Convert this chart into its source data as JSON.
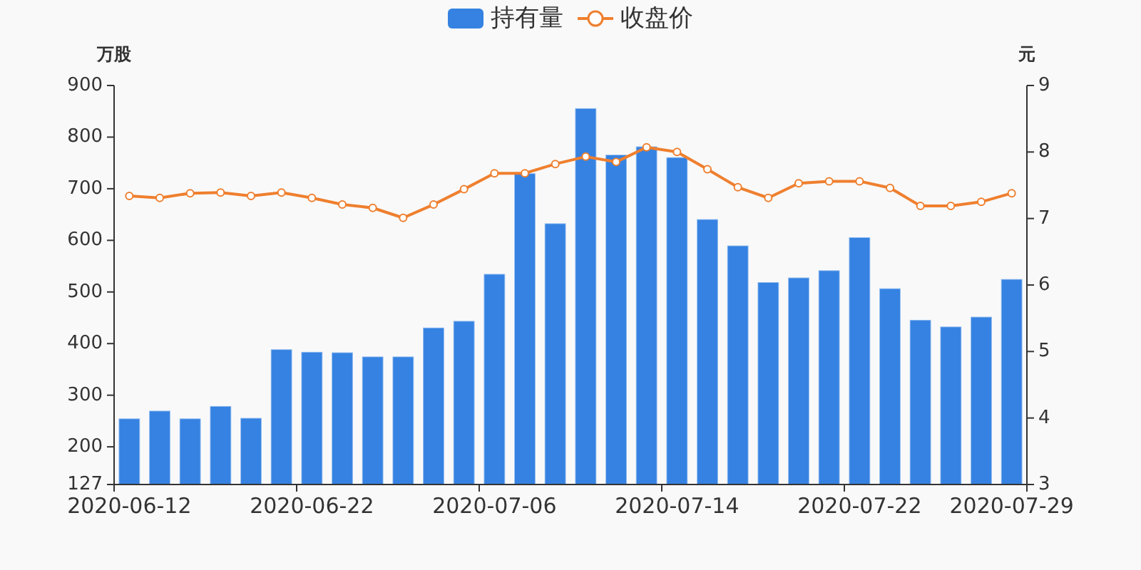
{
  "chart_data": {
    "type": "bar",
    "categories": [
      "2020-06-12",
      null,
      null,
      null,
      null,
      null,
      "2020-06-22",
      null,
      null,
      null,
      null,
      null,
      "2020-07-06",
      null,
      null,
      null,
      null,
      null,
      "2020-07-14",
      null,
      null,
      null,
      null,
      null,
      "2020-07-22",
      null,
      null,
      null,
      null,
      "2020-07-29"
    ],
    "ylabel": "万股",
    "y2label": "元",
    "ylim": [
      127,
      900
    ],
    "yticks": [
      127,
      200,
      300,
      400,
      500,
      600,
      700,
      800,
      900
    ],
    "y2lim": [
      3,
      9
    ],
    "y2ticks": [
      3,
      4,
      5,
      6,
      7,
      8,
      9
    ],
    "legend": "top",
    "marker": "circle",
    "series": [
      {
        "name": "持有量",
        "color": "#3582e2",
        "values": [
          255,
          270,
          255,
          279,
          256,
          389,
          384,
          383,
          375,
          375,
          431,
          444,
          535,
          730,
          633,
          856,
          766,
          782,
          761,
          641,
          590,
          519,
          528,
          542,
          606,
          507,
          446,
          433,
          452,
          525
        ]
      },
      {
        "name": "收盘价",
        "type": "line",
        "axis": "y2",
        "color": "#ef7f2e",
        "values": [
          7.34,
          7.31,
          7.38,
          7.39,
          7.34,
          7.39,
          7.31,
          7.21,
          7.16,
          7.01,
          7.21,
          7.44,
          7.68,
          7.68,
          7.82,
          7.93,
          7.85,
          8.07,
          8.0,
          7.74,
          7.47,
          7.31,
          7.53,
          7.56,
          7.56,
          7.46,
          7.19,
          7.19,
          7.25,
          7.38
        ]
      }
    ]
  }
}
